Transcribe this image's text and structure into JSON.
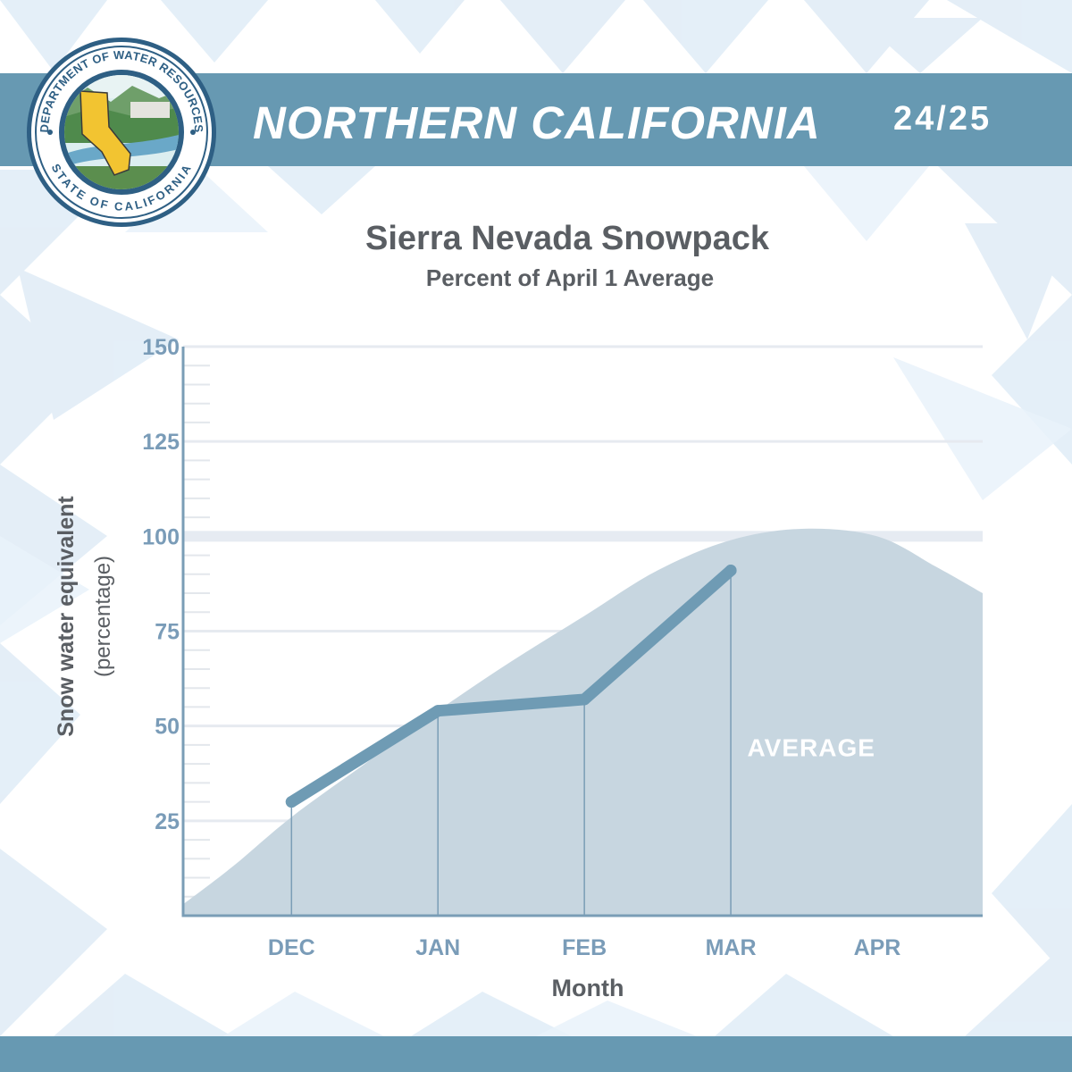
{
  "header": {
    "title": "NORTHERN CALIFORNIA",
    "season": "24/25",
    "seal_top_text": "DEPARTMENT OF WATER RESOURCES",
    "seal_bottom_text": "STATE OF CALIFORNIA"
  },
  "colors": {
    "banner": "#6799b2",
    "line": "#6f9bb4",
    "average_area": "#c7d6e0",
    "axis": "#7a9db6",
    "tick_labels": "#7a9cb8",
    "title_text": "#5a5e63"
  },
  "chart_data": {
    "type": "line",
    "title": "Sierra Nevada Snowpack",
    "subtitle": "Percent of April 1 Average",
    "xlabel": "Month",
    "ylabel": "Snow water equivalent",
    "ylabel_sub": "(percentage)",
    "categories": [
      "DEC",
      "JAN",
      "FEB",
      "MAR",
      "APR"
    ],
    "yticks": [
      25,
      50,
      75,
      100,
      125,
      150
    ],
    "ylim": [
      0,
      150
    ],
    "xlim": [
      0.26,
      5.72
    ],
    "grid": true,
    "series": [
      {
        "x": [
          1,
          2,
          3,
          4
        ],
        "values": [
          30,
          54,
          57,
          91
        ]
      }
    ],
    "average": {
      "label": "AVERAGE",
      "x": [
        0.26,
        0.6,
        1.0,
        1.5,
        2.0,
        2.5,
        3.0,
        3.5,
        4.0,
        4.5,
        5.0,
        5.4,
        5.72
      ],
      "values": [
        3,
        13,
        26,
        40,
        54,
        67,
        79,
        91,
        99,
        102,
        100,
        92,
        85
      ]
    }
  }
}
